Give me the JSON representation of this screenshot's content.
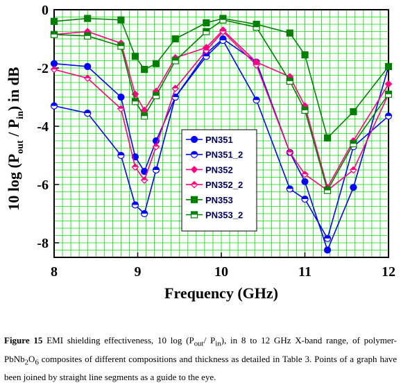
{
  "chart_data": {
    "type": "line",
    "xlabel": "Frequency (GHz)",
    "ylabel_parts": [
      "10 log (P",
      "out",
      " / P",
      "in",
      ") in dB"
    ],
    "xlim": [
      8,
      12
    ],
    "ylim": [
      -8.5,
      0
    ],
    "xticks": [
      8,
      9,
      10,
      11,
      12
    ],
    "yticks": [
      0,
      -2,
      -4,
      -6,
      -8
    ],
    "grid": true,
    "grid_color": "#00dd00",
    "legend_position": "center-left",
    "series": [
      {
        "name": "PN351",
        "color": "#0000ff",
        "marker": "circle",
        "fill": "full",
        "x": [
          8.0,
          8.4,
          8.8,
          8.97,
          9.08,
          9.22,
          9.45,
          9.82,
          10.02,
          10.42,
          10.82,
          11.0,
          11.27,
          11.58,
          12.0
        ],
        "y": [
          -1.85,
          -1.95,
          -3.0,
          -5.05,
          -5.55,
          -4.5,
          -3.0,
          -1.5,
          -1.0,
          -1.8,
          -4.9,
          -5.9,
          -8.25,
          -6.1,
          -1.95
        ]
      },
      {
        "name": "PN351_2",
        "color": "#0000ff",
        "marker": "circle",
        "fill": "half",
        "x": [
          8.0,
          8.4,
          8.8,
          8.97,
          9.08,
          9.22,
          9.45,
          9.82,
          10.02,
          10.42,
          10.82,
          11.0,
          11.27,
          11.58,
          12.0
        ],
        "y": [
          -3.3,
          -3.55,
          -5.0,
          -6.7,
          -7.0,
          -5.5,
          -3.0,
          -1.6,
          -1.05,
          -3.1,
          -6.15,
          -6.5,
          -7.85,
          -4.7,
          -3.65
        ]
      },
      {
        "name": "PN352",
        "color": "#ff0080",
        "marker": "diamond",
        "fill": "full",
        "x": [
          8.0,
          8.4,
          8.8,
          8.97,
          9.08,
          9.22,
          9.45,
          9.82,
          10.02,
          10.42,
          10.82,
          11.0,
          11.27,
          11.58,
          12.0
        ],
        "y": [
          -0.85,
          -0.75,
          -1.15,
          -2.9,
          -3.45,
          -2.8,
          -1.65,
          -1.3,
          -0.7,
          -1.8,
          -2.3,
          -3.3,
          -6.1,
          -4.5,
          -2.55
        ]
      },
      {
        "name": "PN352_2",
        "color": "#ff0080",
        "marker": "diamond",
        "fill": "half",
        "x": [
          8.0,
          8.4,
          8.8,
          8.97,
          9.08,
          9.22,
          9.45,
          9.82,
          10.02,
          10.42,
          10.82,
          11.0,
          11.27,
          11.58,
          12.0
        ],
        "y": [
          -2.05,
          -2.35,
          -3.4,
          -5.4,
          -5.85,
          -4.7,
          -2.7,
          -1.4,
          -0.75,
          -1.9,
          -4.9,
          -5.65,
          -6.2,
          -5.5,
          -2.9
        ]
      },
      {
        "name": "PN353",
        "color": "#008000",
        "marker": "square",
        "fill": "full",
        "x": [
          8.0,
          8.4,
          8.8,
          8.97,
          9.08,
          9.22,
          9.45,
          9.82,
          10.02,
          10.42,
          10.82,
          11.0,
          11.27,
          11.58,
          12.0
        ],
        "y": [
          -0.4,
          -0.3,
          -0.35,
          -1.6,
          -2.05,
          -1.85,
          -1.0,
          -0.45,
          -0.3,
          -0.5,
          -0.8,
          -1.55,
          -4.4,
          -3.5,
          -1.95
        ]
      },
      {
        "name": "PN353_2",
        "color": "#008000",
        "marker": "square",
        "fill": "half",
        "x": [
          8.0,
          8.4,
          8.8,
          8.97,
          9.08,
          9.22,
          9.45,
          9.82,
          10.02,
          10.42,
          10.82,
          11.0,
          11.27,
          11.58,
          12.0
        ],
        "y": [
          -0.85,
          -0.9,
          -1.25,
          -3.15,
          -3.65,
          -2.95,
          -1.75,
          -0.75,
          -0.35,
          -0.6,
          -2.45,
          -3.45,
          -6.2,
          -4.6,
          -2.9
        ]
      }
    ]
  },
  "caption": {
    "label": "Figure 15",
    "text_a": " EMI shielding effectiveness, 10 log (P",
    "sub_out": "out",
    "text_b": "/ P",
    "sub_in": "in",
    "text_c": "), in 8 to 12 GHz X-band range, of polymer- PbNb",
    "sub_2": "2",
    "text_d": "O",
    "sub_6": "6",
    "text_e": " composites of different compositions and thickness as detailed in Table 3. Points of a graph have been joined by straight line segments as a guide to the eye."
  }
}
